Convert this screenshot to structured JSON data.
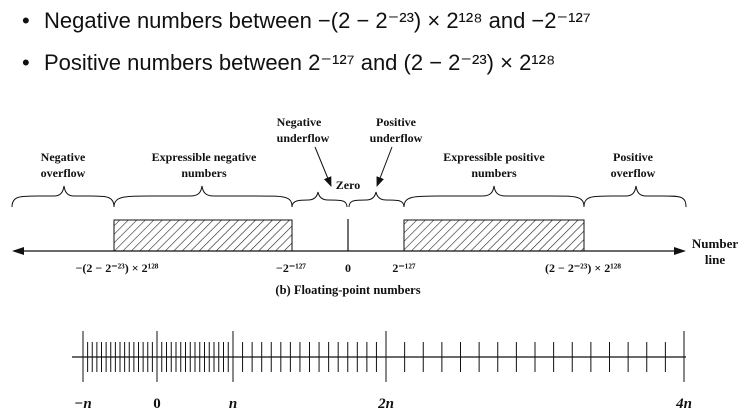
{
  "bullets": [
    {
      "marker": "•",
      "text": "Negative numbers between −(2 − 2⁻²³) × 2¹²⁸ and −2⁻¹²⁷"
    },
    {
      "marker": "•",
      "text": "Positive numbers between 2⁻¹²⁷ and (2 − 2⁻²³) × 2¹²⁸"
    }
  ],
  "top_diagram": {
    "regions": {
      "negative_overflow": [
        "Negative",
        "overflow"
      ],
      "expressible_negative": [
        "Expressible negative",
        "numbers"
      ],
      "negative_underflow": [
        "Negative",
        "underflow"
      ],
      "zero": "Zero",
      "positive_underflow": [
        "Positive",
        "underflow"
      ],
      "expressible_positive": [
        "Expressible positive",
        "numbers"
      ],
      "positive_overflow": [
        "Positive",
        "overflow"
      ]
    },
    "axis_label": [
      "Number",
      "line"
    ],
    "ticks": {
      "neg_max": "−(2 − 2⁻²³) × 2¹²⁸",
      "neg_min": "−2⁻¹²⁷",
      "zero": "0",
      "pos_min": "2⁻¹²⁷",
      "pos_max": "(2 − 2⁻²³) × 2¹²⁸"
    },
    "caption": "(b) Floating-point numbers"
  },
  "bottom_diagram": {
    "labels": [
      "−n",
      "0",
      "n",
      "2n",
      "4n"
    ]
  }
}
